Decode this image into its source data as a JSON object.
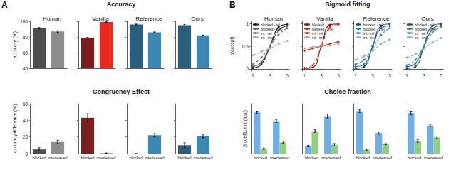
{
  "sections": [
    {
      "label": "A",
      "titles": [
        "Accuracy",
        "Congruency Effect"
      ]
    },
    {
      "label": "B",
      "titles": [
        "Sigmoid fitting",
        "Choice fraction"
      ]
    }
  ],
  "chart_data": [
    {
      "type": "bar",
      "title": "Human",
      "ylabel": "accuracy (%)",
      "values": [
        91,
        87
      ],
      "errors": [
        1,
        1
      ],
      "colors": [
        "#4d4d4d",
        "#8c8c8c"
      ],
      "ylim": [
        40,
        100
      ],
      "yticks": [
        40,
        60,
        80,
        100
      ],
      "tick_labels": "y"
    },
    {
      "type": "bar",
      "title": "Vanilla",
      "values": [
        79,
        99
      ],
      "errors": [
        0.5,
        0.3
      ],
      "colors": [
        "#7a1f1f",
        "#e8291c"
      ],
      "ylim": [
        40,
        100
      ],
      "yticks": [
        40,
        60,
        80,
        100
      ],
      "tick_labels": false
    },
    {
      "type": "bar",
      "title": "Reference",
      "values": [
        96,
        86
      ],
      "errors": [
        0.5,
        0.5
      ],
      "colors": [
        "#2b5d7d",
        "#3a88b3"
      ],
      "ylim": [
        40,
        100
      ],
      "yticks": [
        40,
        60,
        80,
        100
      ],
      "tick_labels": false
    },
    {
      "type": "bar",
      "title": "Ours",
      "values": [
        95,
        82
      ],
      "errors": [
        1,
        0.5
      ],
      "colors": [
        "#2b5d7d",
        "#3a88b3"
      ],
      "ylim": [
        40,
        100
      ],
      "yticks": [
        40,
        60,
        80,
        100
      ],
      "tick_labels": false
    },
    {
      "type": "bar",
      "ylabel": "accuracy difference (%)",
      "categories": [
        "blocked",
        "interleaved"
      ],
      "values": [
        5,
        14
      ],
      "errors": [
        2,
        2
      ],
      "colors": [
        "#4d4d4d",
        "#8c8c8c"
      ],
      "ylim": [
        0,
        60
      ],
      "yticks": [
        0,
        20,
        40,
        60
      ]
    },
    {
      "type": "bar",
      "categories": [
        "blocked",
        "interleaved"
      ],
      "values": [
        43,
        0.5
      ],
      "errors": [
        5,
        0.3
      ],
      "colors": [
        "#7a1f1f",
        "#e8291c"
      ],
      "ylim": [
        0,
        60
      ],
      "yticks": [
        0,
        20,
        40,
        60
      ],
      "tick_labels": "x"
    },
    {
      "type": "bar",
      "categories": [
        "blocked",
        "interleaved"
      ],
      "values": [
        0,
        22
      ],
      "errors": [
        0,
        2
      ],
      "colors": [
        "#2b5d7d",
        "#3a88b3"
      ],
      "ylim": [
        0,
        60
      ],
      "yticks": [
        0,
        20,
        40,
        60
      ],
      "tick_labels": "x"
    },
    {
      "type": "bar",
      "categories": [
        "blocked",
        "interleaved"
      ],
      "values": [
        10,
        21
      ],
      "errors": [
        3,
        2
      ],
      "colors": [
        "#2b5d7d",
        "#3a88b3"
      ],
      "ylim": [
        0,
        60
      ],
      "yticks": [
        0,
        20,
        40,
        60
      ],
      "tick_labels": "x"
    },
    {
      "type": "line",
      "title": "Human",
      "ylabel": "p(accept)",
      "x": [
        1,
        2,
        3,
        4,
        5
      ],
      "xlim": [
        0.75,
        5.25
      ],
      "xticks": [
        1,
        3,
        5
      ],
      "ylim": [
        -0.05,
        1.05
      ],
      "yticks": [
        0,
        0.5,
        1
      ],
      "legend": "upper left",
      "series": [
        {
          "name": "blocked - rel",
          "color": "#1a1a1a",
          "marker": "circle",
          "line_style": "solid",
          "values": [
            0.02,
            0.1,
            0.5,
            0.92,
            0.98
          ]
        },
        {
          "name": "blocked - irrel",
          "color": "#555555",
          "marker": "circle",
          "line_style": "solid",
          "values": [
            0.05,
            0.15,
            0.5,
            0.85,
            0.95
          ]
        },
        {
          "name": "int - rel",
          "color": "#777777",
          "marker": "circle",
          "line_style": "dashed",
          "values": [
            0.1,
            0.25,
            0.5,
            0.75,
            0.9
          ]
        },
        {
          "name": "int - irrel",
          "color": "#aaaaaa",
          "marker": "circle",
          "line_style": "dashed",
          "values": [
            0.3,
            0.38,
            0.45,
            0.55,
            0.62
          ]
        }
      ]
    },
    {
      "type": "line",
      "title": "Vanilla",
      "x": [
        1,
        2,
        3,
        4,
        5
      ],
      "xlim": [
        0.75,
        5.25
      ],
      "xticks": [
        1,
        3,
        5
      ],
      "ylim": [
        -0.05,
        1.05
      ],
      "yticks": [
        0,
        0.5,
        1
      ],
      "legend": "upper left",
      "tick_labels": "x",
      "series": [
        {
          "name": "blocked - rel",
          "color": "#7a1f1f",
          "marker": "circle",
          "line_style": "solid",
          "values": [
            0.01,
            0.03,
            0.5,
            0.97,
            0.99
          ]
        },
        {
          "name": "blocked - irrel",
          "color": "#b52a22",
          "marker": "circle",
          "line_style": "solid",
          "values": [
            0.4,
            0.45,
            0.5,
            0.55,
            0.6
          ]
        },
        {
          "name": "int - rel",
          "color": "#e8291c",
          "marker": "circle",
          "line_style": "dashed",
          "values": [
            0.02,
            0.08,
            0.5,
            0.92,
            0.98
          ]
        },
        {
          "name": "int - irrel",
          "color": "#f08a80",
          "marker": "circle",
          "line_style": "dashed",
          "values": [
            0.45,
            0.48,
            0.5,
            0.52,
            0.55
          ]
        }
      ]
    },
    {
      "type": "line",
      "title": "Reference",
      "x": [
        1,
        2,
        3,
        4,
        5
      ],
      "xlim": [
        0.75,
        5.25
      ],
      "xticks": [
        1,
        3,
        5
      ],
      "ylim": [
        -0.05,
        1.05
      ],
      "yticks": [
        0,
        0.5,
        1
      ],
      "legend": "upper left",
      "tick_labels": "x",
      "series": [
        {
          "name": "blocked - rel",
          "color": "#1f4e6b",
          "marker": "circle",
          "line_style": "solid",
          "values": [
            0.01,
            0.05,
            0.5,
            0.95,
            0.99
          ]
        },
        {
          "name": "blocked - irrel",
          "color": "#2f6f94",
          "marker": "circle",
          "line_style": "solid",
          "values": [
            0.05,
            0.1,
            0.5,
            0.9,
            0.95
          ]
        },
        {
          "name": "int - rel",
          "color": "#3d8ab8",
          "marker": "circle",
          "line_style": "dashed",
          "values": [
            0.1,
            0.2,
            0.45,
            0.75,
            0.9
          ]
        },
        {
          "name": "int - irrel",
          "color": "#7fb3d5",
          "marker": "circle",
          "line_style": "dashed",
          "values": [
            0.2,
            0.28,
            0.4,
            0.55,
            0.65
          ]
        }
      ]
    },
    {
      "type": "line",
      "title": "Ours",
      "x": [
        1,
        2,
        3,
        4,
        5
      ],
      "xlim": [
        0.75,
        5.25
      ],
      "xticks": [
        1,
        3,
        5
      ],
      "ylim": [
        -0.05,
        1.05
      ],
      "yticks": [
        0,
        0.5,
        1
      ],
      "legend": "upper left",
      "tick_labels": "x",
      "series": [
        {
          "name": "blocked - rel",
          "color": "#1f4e6b",
          "marker": "circle",
          "line_style": "solid",
          "values": [
            0.01,
            0.05,
            0.5,
            0.95,
            0.99
          ]
        },
        {
          "name": "blocked - irrel",
          "color": "#2f6f94",
          "marker": "circle",
          "line_style": "solid",
          "values": [
            0.05,
            0.12,
            0.5,
            0.88,
            0.95
          ]
        },
        {
          "name": "int - rel",
          "color": "#3d8ab8",
          "marker": "circle",
          "line_style": "dashed",
          "values": [
            0.08,
            0.2,
            0.5,
            0.8,
            0.92
          ]
        },
        {
          "name": "int - irrel",
          "color": "#7fb3d5",
          "marker": "circle",
          "line_style": "dashed",
          "values": [
            0.25,
            0.32,
            0.45,
            0.58,
            0.68
          ]
        }
      ]
    },
    {
      "type": "bar",
      "ylabel": "β coefficient (a.u.)",
      "categories": [
        "blocked",
        "interleaved"
      ],
      "ylim": [
        0,
        0.8
      ],
      "tick_labels": "x",
      "series": [
        {
          "color": "#72aee6",
          "values": [
            0.66,
            0.52
          ],
          "errors": [
            0.02,
            0.02
          ]
        },
        {
          "color": "#8fcf7e",
          "values": [
            0.08,
            0.18
          ],
          "errors": [
            0.01,
            0.02
          ]
        }
      ]
    },
    {
      "type": "bar",
      "categories": [
        "blocked",
        "interleaved"
      ],
      "ylim": [
        0,
        0.8
      ],
      "tick_labels": "x",
      "series": [
        {
          "color": "#72aee6",
          "values": [
            0.12,
            0.6
          ],
          "errors": [
            0.01,
            0.03
          ]
        },
        {
          "color": "#8fcf7e",
          "values": [
            0.36,
            0.14
          ],
          "errors": [
            0.02,
            0.02
          ]
        }
      ]
    },
    {
      "type": "bar",
      "categories": [
        "blocked",
        "interleaved"
      ],
      "ylim": [
        0,
        0.8
      ],
      "tick_labels": "x",
      "series": [
        {
          "color": "#72aee6",
          "values": [
            0.68,
            0.33
          ],
          "errors": [
            0.02,
            0.02
          ]
        },
        {
          "color": "#8fcf7e",
          "values": [
            0.06,
            0.15
          ],
          "errors": [
            0.01,
            0.01
          ]
        }
      ]
    },
    {
      "type": "bar",
      "categories": [
        "blocked",
        "interleaved"
      ],
      "ylim": [
        0,
        0.8
      ],
      "tick_labels": "x",
      "series": [
        {
          "color": "#72aee6",
          "values": [
            0.65,
            0.45
          ],
          "errors": [
            0.03,
            0.02
          ]
        },
        {
          "color": "#8fcf7e",
          "values": [
            0.2,
            0.26
          ],
          "errors": [
            0.02,
            0.02
          ]
        }
      ]
    }
  ]
}
